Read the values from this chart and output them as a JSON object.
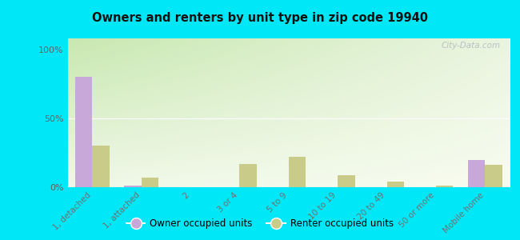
{
  "title": "Owners and renters by unit type in zip code 19940",
  "categories": [
    "1, detached",
    "1, attached",
    "2",
    "3 or 4",
    "5 to 9",
    "10 to 19",
    "20 to 49",
    "50 or more",
    "Mobile home"
  ],
  "owner_values": [
    80,
    1,
    0,
    0,
    0,
    0,
    0,
    0,
    20
  ],
  "renter_values": [
    30,
    7,
    0,
    17,
    22,
    9,
    4,
    1,
    16
  ],
  "owner_color": "#c8a8d8",
  "renter_color": "#c8cc88",
  "bg_color_topleft": "#c8e8b0",
  "bg_color_topright": "#eaf5e0",
  "bg_color_bottom": "#f0f8e8",
  "outer_bg": "#00e8f8",
  "yticks": [
    0,
    50,
    100
  ],
  "ytick_labels": [
    "0%",
    "50%",
    "100%"
  ],
  "ylim": [
    0,
    108
  ],
  "bar_width": 0.35,
  "watermark": "City-Data.com"
}
